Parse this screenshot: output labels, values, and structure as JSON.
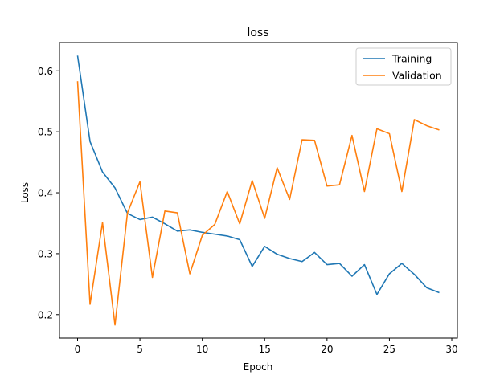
{
  "chart_data": {
    "type": "line",
    "title": "loss",
    "xlabel": "Epoch",
    "ylabel": "Loss",
    "xlim": [
      -1.45,
      30.45
    ],
    "ylim": [
      0.1615,
      0.6465
    ],
    "xticks": [
      0,
      5,
      10,
      15,
      20,
      25,
      30
    ],
    "yticks": [
      0.2,
      0.3,
      0.4,
      0.5,
      0.6
    ],
    "legend": "top-right",
    "grid": false,
    "x": [
      0,
      1,
      2,
      3,
      4,
      5,
      6,
      7,
      8,
      9,
      10,
      11,
      12,
      13,
      14,
      15,
      16,
      17,
      18,
      19,
      20,
      21,
      22,
      23,
      24,
      25,
      26,
      27,
      28,
      29
    ],
    "series": [
      {
        "name": "Training",
        "color": "#1f77b4",
        "values": [
          0.625,
          0.484,
          0.434,
          0.408,
          0.366,
          0.356,
          0.36,
          0.349,
          0.337,
          0.339,
          0.335,
          0.332,
          0.329,
          0.323,
          0.279,
          0.312,
          0.299,
          0.292,
          0.287,
          0.302,
          0.282,
          0.284,
          0.263,
          0.282,
          0.233,
          0.267,
          0.284,
          0.266,
          0.244,
          0.236
        ]
      },
      {
        "name": "Validation",
        "color": "#ff7f0e",
        "values": [
          0.583,
          0.217,
          0.351,
          0.183,
          0.367,
          0.418,
          0.261,
          0.37,
          0.367,
          0.267,
          0.33,
          0.348,
          0.402,
          0.349,
          0.42,
          0.358,
          0.441,
          0.389,
          0.487,
          0.486,
          0.411,
          0.413,
          0.494,
          0.402,
          0.505,
          0.497,
          0.402,
          0.52,
          0.51,
          0.503
        ]
      }
    ]
  }
}
